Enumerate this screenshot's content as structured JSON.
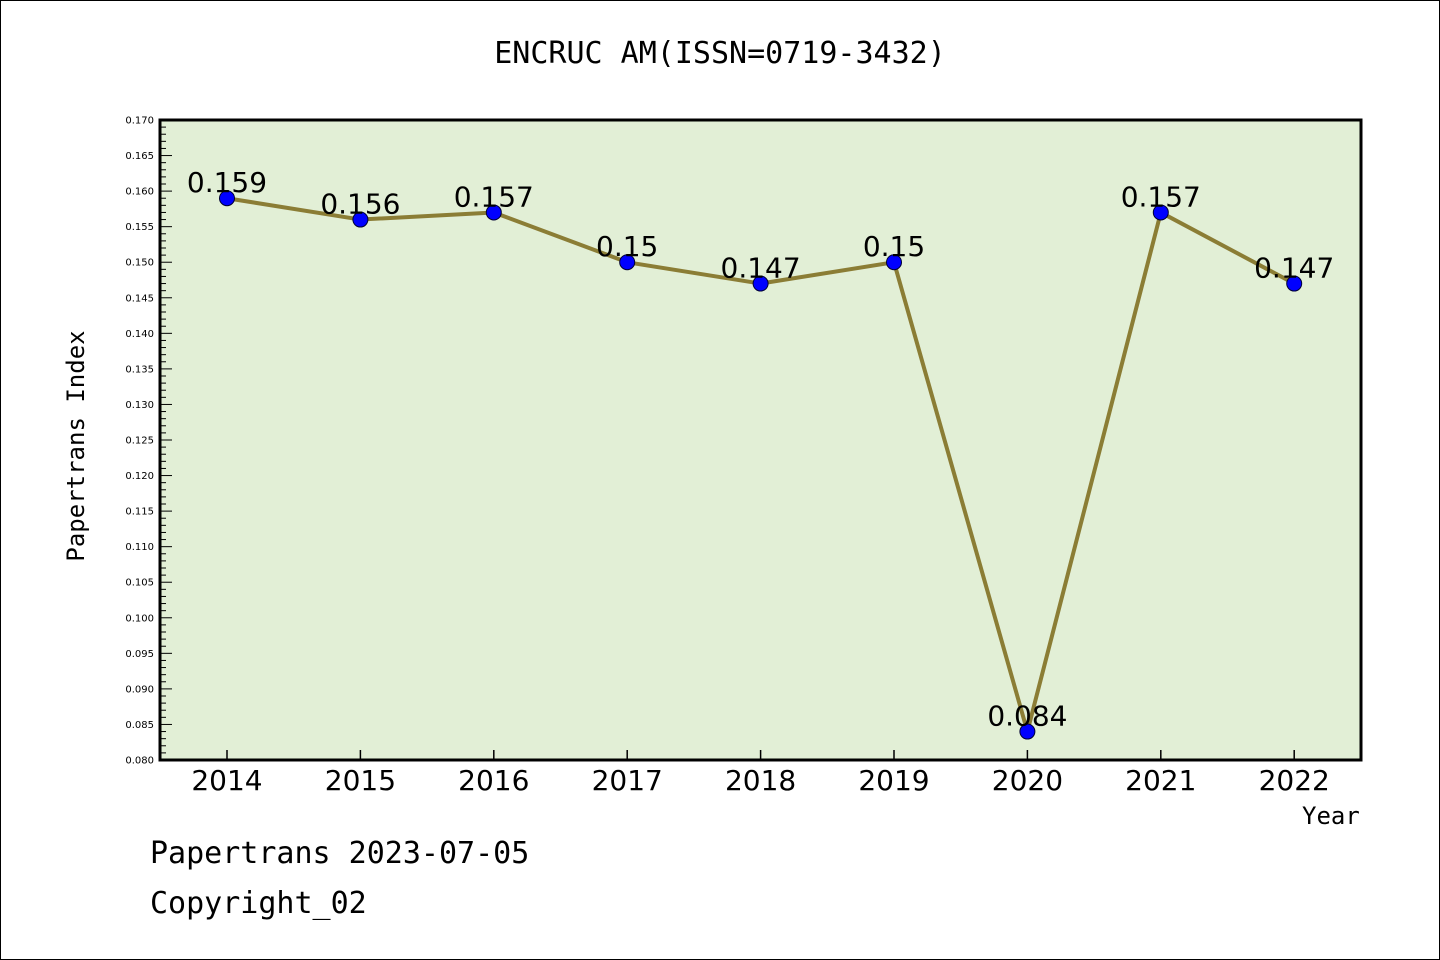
{
  "title": "ENCRUC AM(ISSN=0719-3432)",
  "footer": {
    "line1": "Papertrans 2023-07-05",
    "line2": "Copyright_02"
  },
  "colors": {
    "plot_background": "#e2efd6",
    "line": "#8b7d35",
    "marker": "#0000ff"
  },
  "chart_data": {
    "type": "line",
    "xlabel": "Year",
    "ylabel": "Papertrans Index",
    "ylim": [
      0.08,
      0.17
    ],
    "y_ticks": [
      "0.080",
      "0.085",
      "0.090",
      "0.095",
      "0.100",
      "0.105",
      "0.110",
      "0.115",
      "0.120",
      "0.125",
      "0.130",
      "0.135",
      "0.140",
      "0.145",
      "0.150",
      "0.155",
      "0.160",
      "0.165",
      "0.170"
    ],
    "categories": [
      "2014",
      "2015",
      "2016",
      "2017",
      "2018",
      "2019",
      "2020",
      "2021",
      "2022"
    ],
    "values": [
      0.159,
      0.156,
      0.157,
      0.15,
      0.147,
      0.15,
      0.084,
      0.157,
      0.147
    ],
    "data_labels": [
      "0.159",
      "0.156",
      "0.157",
      "0.15",
      "0.147",
      "0.15",
      "0.084",
      "0.157",
      "0.147"
    ],
    "grid": false,
    "legend": "none"
  }
}
